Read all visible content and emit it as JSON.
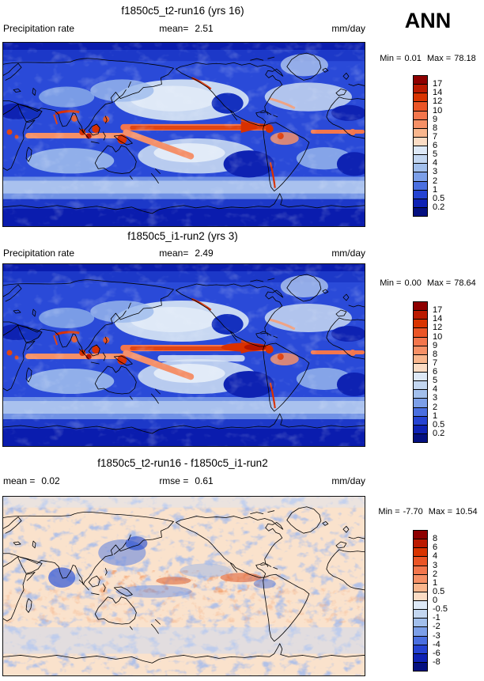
{
  "season_label": "ANN",
  "colorbar_colors": [
    "#8E0000",
    "#BB1A00",
    "#D93400",
    "#EB5526",
    "#F3764C",
    "#F69066",
    "#F9B68D",
    "#FBDCC4",
    "#DDE8F6",
    "#C3D6F0",
    "#A2BFEC",
    "#7C9FE8",
    "#4A6FE0",
    "#2543D2",
    "#0E22B4",
    "#041080"
  ],
  "panels": [
    {
      "title": "f1850c5_t2-run16 (yrs 16)",
      "left_label": "Precipitation rate",
      "left_value": "",
      "center_label": "mean=",
      "center_value": "2.51",
      "units": "mm/day",
      "min_label": "Min =",
      "min_value": "0.01",
      "max_label": "Max =",
      "max_value": "78.18",
      "colorbar_ticks": [
        "17",
        "14",
        "12",
        "10",
        "9",
        "8",
        "7",
        "6",
        "5",
        "4",
        "3",
        "2",
        "1",
        "0.5",
        "0.2"
      ]
    },
    {
      "title": "f1850c5_i1-run2 (yrs 3)",
      "left_label": "Precipitation rate",
      "left_value": "",
      "center_label": "mean=",
      "center_value": "2.49",
      "units": "mm/day",
      "min_label": "Min =",
      "min_value": "0.00",
      "max_label": "Max =",
      "max_value": "78.64",
      "colorbar_ticks": [
        "17",
        "14",
        "12",
        "10",
        "9",
        "8",
        "7",
        "6",
        "5",
        "4",
        "3",
        "2",
        "1",
        "0.5",
        "0.2"
      ]
    },
    {
      "title": "f1850c5_t2-run16 - f1850c5_i1-run2",
      "left_label": "mean =",
      "left_value": "0.02",
      "center_label": "rmse =",
      "center_value": "0.61",
      "units": "mm/day",
      "min_label": "Min =",
      "min_value": "-7.70",
      "max_label": "Max =",
      "max_value": "10.54",
      "colorbar_ticks": [
        "8",
        "6",
        "4",
        "3",
        "2",
        "1",
        "0.5",
        "0",
        "-0.5",
        "-1",
        "-2",
        "-3",
        "-4",
        "-6",
        "-8"
      ]
    }
  ],
  "chart_data": [
    {
      "type": "heatmap",
      "title": "f1850c5_t2-run16 (yrs 16)",
      "variable": "Precipitation rate",
      "units": "mm/day",
      "season": "ANN",
      "mean": 2.51,
      "min": 0.01,
      "max": 78.18,
      "contour_levels": [
        0.2,
        0.5,
        1,
        2,
        3,
        4,
        5,
        6,
        7,
        8,
        9,
        10,
        12,
        14,
        17
      ],
      "projection": "global latitude-longitude map, Pacific-centered",
      "legend_position": "right vertical colorbar",
      "palette_top_to_bottom": [
        "#8E0000",
        "#BB1A00",
        "#D93400",
        "#EB5526",
        "#F3764C",
        "#F69066",
        "#F9B68D",
        "#FBDCC4",
        "#DDE8F6",
        "#C3D6F0",
        "#A2BFEC",
        "#7C9FE8",
        "#4A6FE0",
        "#2543D2",
        "#0E22B4",
        "#041080"
      ]
    },
    {
      "type": "heatmap",
      "title": "f1850c5_i1-run2 (yrs 3)",
      "variable": "Precipitation rate",
      "units": "mm/day",
      "season": "ANN",
      "mean": 2.49,
      "min": 0.0,
      "max": 78.64,
      "contour_levels": [
        0.2,
        0.5,
        1,
        2,
        3,
        4,
        5,
        6,
        7,
        8,
        9,
        10,
        12,
        14,
        17
      ],
      "projection": "global latitude-longitude map, Pacific-centered",
      "legend_position": "right vertical colorbar"
    },
    {
      "type": "heatmap",
      "title": "f1850c5_t2-run16 - f1850c5_i1-run2",
      "variable": "Precipitation rate difference",
      "units": "mm/day",
      "season": "ANN",
      "mean": 0.02,
      "rmse": 0.61,
      "min": -7.7,
      "max": 10.54,
      "contour_levels": [
        -8,
        -6,
        -4,
        -3,
        -2,
        -1,
        -0.5,
        0,
        0.5,
        1,
        2,
        3,
        4,
        6,
        8
      ],
      "projection": "global latitude-longitude map, Pacific-centered",
      "legend_position": "right vertical colorbar"
    }
  ]
}
